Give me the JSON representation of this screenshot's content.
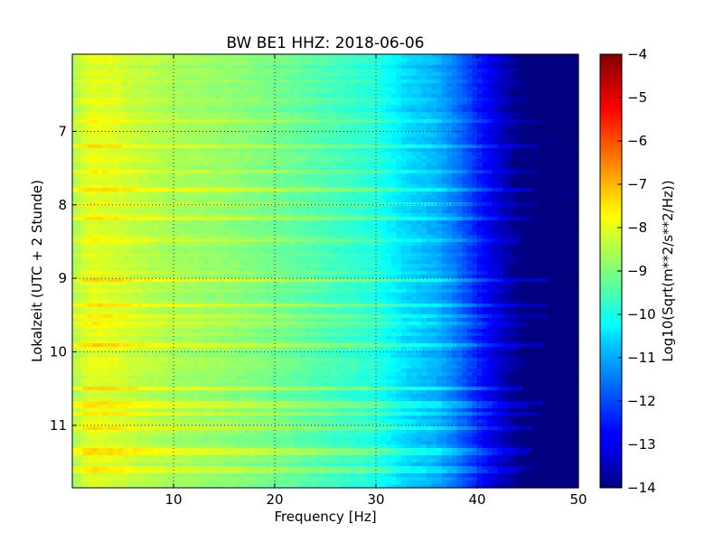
{
  "chart_data": {
    "type": "heatmap",
    "title": "BW BE1 HHZ: 2018-06-06",
    "xlabel": "Frequency [Hz]",
    "ylabel": "Lokalzeit (UTC + 2 Stunde)",
    "xlim": [
      0,
      50
    ],
    "ylim": [
      5.95,
      11.85
    ],
    "y_inverted": true,
    "xticks": [
      10,
      20,
      30,
      40,
      50
    ],
    "yticks": [
      7,
      8,
      9,
      10,
      11
    ],
    "grid": true,
    "colorbar": {
      "label": "Log10(Sqrt(m**2/s**2/Hz))",
      "range": [
        -14,
        -4
      ],
      "ticks": [
        -4,
        -5,
        -6,
        -7,
        -8,
        -9,
        -10,
        -11,
        -12,
        -13,
        -14
      ],
      "colormap": "jet"
    },
    "spectral_profile": {
      "frequency_hz": [
        0,
        1,
        2,
        4,
        6,
        10,
        15,
        20,
        25,
        30,
        33,
        36,
        38,
        40,
        42,
        44,
        45,
        50
      ],
      "log10_amplitude": [
        -8.6,
        -8.2,
        -8.0,
        -8.1,
        -8.3,
        -8.6,
        -8.8,
        -9.1,
        -9.5,
        -9.9,
        -10.6,
        -11.0,
        -11.6,
        -12.4,
        -13.2,
        -13.8,
        -14,
        -14
      ]
    },
    "bright_bands_hours": [
      6.85,
      7.2,
      7.55,
      7.8,
      7.98,
      8.2,
      8.5,
      9.03,
      9.35,
      9.5,
      9.62,
      9.9,
      10.48,
      10.72,
      10.85,
      11.05,
      11.32,
      11.4,
      11.6
    ]
  }
}
